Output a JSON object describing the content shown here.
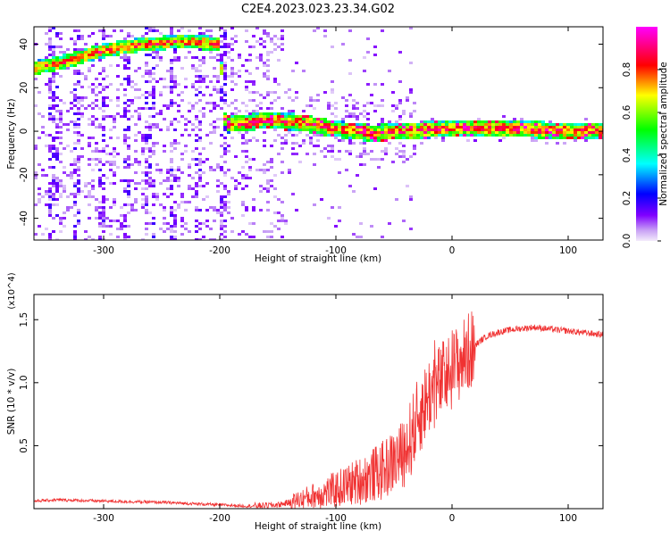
{
  "title": "C2E4.2023.023.23.34.G02",
  "colors": {
    "snr_line": "#f03232",
    "frame": "#000000"
  },
  "chart_data": [
    {
      "type": "heatmap",
      "xlabel": "Height of straight line (km)",
      "ylabel": "Frequency (Hz)",
      "xlim": [
        -360,
        130
      ],
      "ylim": [
        -50,
        48
      ],
      "xticks": [
        -300,
        -200,
        -100,
        0,
        100
      ],
      "yticks": [
        -40,
        -20,
        0,
        20,
        40
      ],
      "colorbar": {
        "label": "Normalized spectral amplitude",
        "range": [
          0.0,
          1.0
        ],
        "ticks": [
          0.0,
          0.2,
          0.4,
          0.6,
          0.8
        ],
        "colormap": [
          "#f0e6fa",
          "#8000ff",
          "#0000ff",
          "#00ffff",
          "#00ff00",
          "#ffff00",
          "#ff0000",
          "#ff00ff"
        ]
      },
      "ridge": [
        {
          "x": -360,
          "y": 29
        },
        {
          "x": -340,
          "y": 31
        },
        {
          "x": -320,
          "y": 34
        },
        {
          "x": -300,
          "y": 37
        },
        {
          "x": -280,
          "y": 39
        },
        {
          "x": -260,
          "y": 40
        },
        {
          "x": -240,
          "y": 41
        },
        {
          "x": -220,
          "y": 41
        },
        {
          "x": -200,
          "y": 40
        },
        {
          "x": -195,
          "y": 3
        },
        {
          "x": -160,
          "y": 5
        },
        {
          "x": -130,
          "y": 4
        },
        {
          "x": -100,
          "y": 1
        },
        {
          "x": -70,
          "y": -1
        },
        {
          "x": -40,
          "y": 0
        },
        {
          "x": -10,
          "y": 1
        },
        {
          "x": 20,
          "y": 1
        },
        {
          "x": 60,
          "y": 1
        },
        {
          "x": 100,
          "y": 0
        },
        {
          "x": 130,
          "y": 0
        }
      ]
    },
    {
      "type": "line",
      "xlabel": "Height of straight line (km)",
      "ylabel": "SNR (10 * v/v)",
      "multiplier": "(x10^4)",
      "xlim": [
        -360,
        130
      ],
      "ylim": [
        0,
        1.7
      ],
      "xticks": [
        -300,
        -200,
        -100,
        0,
        100
      ],
      "yticks": [
        0.5,
        1.0,
        1.5
      ],
      "ytick_labels": [
        "0.5",
        "1.0",
        "1.5"
      ],
      "series": [
        {
          "x": [
            -360,
            -340,
            -300,
            -250,
            -200,
            -175,
            -150,
            -140,
            -120,
            -100,
            -80,
            -60,
            -40,
            -30,
            -20,
            -10,
            0,
            10,
            20,
            30,
            40,
            50,
            60,
            70,
            80,
            90,
            100,
            110,
            120,
            130
          ],
          "y": [
            0.06,
            0.07,
            0.06,
            0.05,
            0.03,
            0.02,
            0.03,
            0.05,
            0.1,
            0.15,
            0.22,
            0.3,
            0.45,
            0.7,
            0.9,
            1.0,
            1.1,
            1.2,
            1.3,
            1.37,
            1.4,
            1.42,
            1.43,
            1.44,
            1.43,
            1.42,
            1.41,
            1.4,
            1.39,
            1.38
          ]
        }
      ]
    }
  ]
}
